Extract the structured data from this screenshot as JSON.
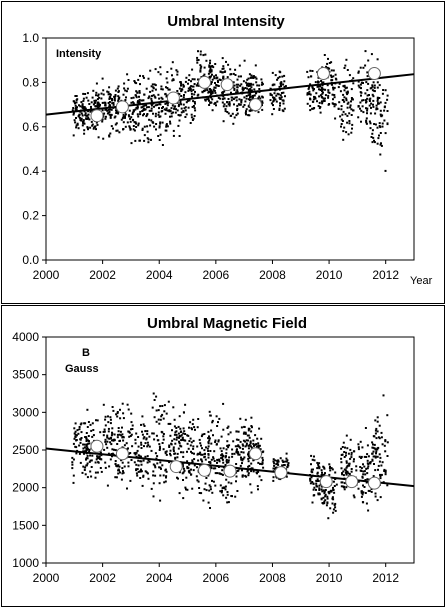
{
  "chart_data": [
    {
      "type": "scatter",
      "title": "Umbral Intensity",
      "inner_label": [
        "Intensity"
      ],
      "xlabel": "Year",
      "ylabel": "",
      "xlim": [
        2000,
        2013
      ],
      "ylim": [
        0.0,
        1.0
      ],
      "x_ticks": [
        "2000",
        "2002",
        "2004",
        "2006",
        "2008",
        "2010",
        "2012"
      ],
      "y_ticks": [
        "0.0",
        "0.2",
        "0.4",
        "0.6",
        "0.8",
        "1.0"
      ],
      "grid": false,
      "series": [
        {
          "type": "scatter",
          "clusters": [
            {
              "x": 2001.2,
              "ymin": 0.53,
              "ymax": 0.78
            },
            {
              "x": 2001.6,
              "ymin": 0.55,
              "ymax": 0.8
            },
            {
              "x": 2002.0,
              "ymin": 0.52,
              "ymax": 0.85
            },
            {
              "x": 2002.5,
              "ymin": 0.5,
              "ymax": 0.86
            },
            {
              "x": 2003.0,
              "ymin": 0.5,
              "ymax": 0.88
            },
            {
              "x": 2003.5,
              "ymin": 0.48,
              "ymax": 0.9
            },
            {
              "x": 2004.0,
              "ymin": 0.45,
              "ymax": 0.92
            },
            {
              "x": 2004.5,
              "ymin": 0.5,
              "ymax": 0.92
            },
            {
              "x": 2005.0,
              "ymin": 0.55,
              "ymax": 0.9
            },
            {
              "x": 2005.6,
              "ymin": 0.6,
              "ymax": 0.99
            },
            {
              "x": 2006.0,
              "ymin": 0.6,
              "ymax": 0.97
            },
            {
              "x": 2006.5,
              "ymin": 0.55,
              "ymax": 0.95
            },
            {
              "x": 2007.0,
              "ymin": 0.58,
              "ymax": 0.92
            },
            {
              "x": 2007.4,
              "ymin": 0.6,
              "ymax": 0.9
            },
            {
              "x": 2008.2,
              "ymin": 0.62,
              "ymax": 0.88
            },
            {
              "x": 2009.5,
              "ymin": 0.6,
              "ymax": 0.95
            },
            {
              "x": 2010.0,
              "ymin": 0.58,
              "ymax": 0.98
            },
            {
              "x": 2010.6,
              "ymin": 0.45,
              "ymax": 0.97
            },
            {
              "x": 2011.3,
              "ymin": 0.5,
              "ymax": 0.99
            },
            {
              "x": 2011.8,
              "ymin": 0.36,
              "ymax": 0.98
            }
          ]
        },
        {
          "type": "mean-markers",
          "points": [
            {
              "x": 2001.8,
              "y": 0.65
            },
            {
              "x": 2002.7,
              "y": 0.69
            },
            {
              "x": 2004.5,
              "y": 0.73
            },
            {
              "x": 2005.6,
              "y": 0.8
            },
            {
              "x": 2006.4,
              "y": 0.79
            },
            {
              "x": 2007.4,
              "y": 0.7
            },
            {
              "x": 2009.8,
              "y": 0.84
            },
            {
              "x": 2011.6,
              "y": 0.84
            }
          ]
        },
        {
          "type": "trend-line",
          "points": [
            {
              "x": 2000,
              "y": 0.655
            },
            {
              "x": 2013,
              "y": 0.837
            }
          ]
        }
      ]
    },
    {
      "type": "scatter",
      "title": "Umbral Magnetic Field",
      "inner_label": [
        "B",
        "Gauss"
      ],
      "xlabel": "",
      "ylabel": "",
      "xlim": [
        2000,
        2013
      ],
      "ylim": [
        1000,
        4000
      ],
      "x_ticks": [
        "2000",
        "2002",
        "2004",
        "2006",
        "2008",
        "2010",
        "2012"
      ],
      "y_ticks": [
        "1000",
        "1500",
        "2000",
        "2500",
        "3000",
        "3500",
        "4000"
      ],
      "grid": false,
      "series": [
        {
          "type": "scatter",
          "clusters": [
            {
              "x": 2001.2,
              "ymin": 1900,
              "ymax": 3150
            },
            {
              "x": 2001.7,
              "ymin": 2000,
              "ymax": 3000
            },
            {
              "x": 2002.3,
              "ymin": 1800,
              "ymax": 3400
            },
            {
              "x": 2002.8,
              "ymin": 1900,
              "ymax": 3300
            },
            {
              "x": 2003.4,
              "ymin": 1800,
              "ymax": 3200
            },
            {
              "x": 2004.0,
              "ymin": 1600,
              "ymax": 3550
            },
            {
              "x": 2004.6,
              "ymin": 1700,
              "ymax": 3300
            },
            {
              "x": 2005.0,
              "ymin": 1700,
              "ymax": 3200
            },
            {
              "x": 2005.6,
              "ymin": 1500,
              "ymax": 3100
            },
            {
              "x": 2006.0,
              "ymin": 1550,
              "ymax": 3300
            },
            {
              "x": 2006.5,
              "ymin": 1600,
              "ymax": 3000
            },
            {
              "x": 2007.0,
              "ymin": 1700,
              "ymax": 3300
            },
            {
              "x": 2007.4,
              "ymin": 1900,
              "ymax": 3000
            },
            {
              "x": 2008.3,
              "ymin": 2000,
              "ymax": 2500
            },
            {
              "x": 2009.6,
              "ymin": 1600,
              "ymax": 2600
            },
            {
              "x": 2010.0,
              "ymin": 1500,
              "ymax": 2500
            },
            {
              "x": 2010.7,
              "ymin": 1700,
              "ymax": 2800
            },
            {
              "x": 2011.3,
              "ymin": 1500,
              "ymax": 2900
            },
            {
              "x": 2011.8,
              "ymin": 1450,
              "ymax": 3350
            }
          ]
        },
        {
          "type": "mean-markers",
          "points": [
            {
              "x": 2001.8,
              "y": 2550
            },
            {
              "x": 2002.7,
              "y": 2450
            },
            {
              "x": 2004.6,
              "y": 2280
            },
            {
              "x": 2005.6,
              "y": 2230
            },
            {
              "x": 2006.5,
              "y": 2220
            },
            {
              "x": 2007.4,
              "y": 2450
            },
            {
              "x": 2008.3,
              "y": 2200
            },
            {
              "x": 2009.9,
              "y": 2080
            },
            {
              "x": 2010.8,
              "y": 2080
            },
            {
              "x": 2011.6,
              "y": 2060
            }
          ]
        },
        {
          "type": "trend-line",
          "points": [
            {
              "x": 2000,
              "y": 2520
            },
            {
              "x": 2013,
              "y": 2020
            }
          ]
        }
      ]
    }
  ]
}
